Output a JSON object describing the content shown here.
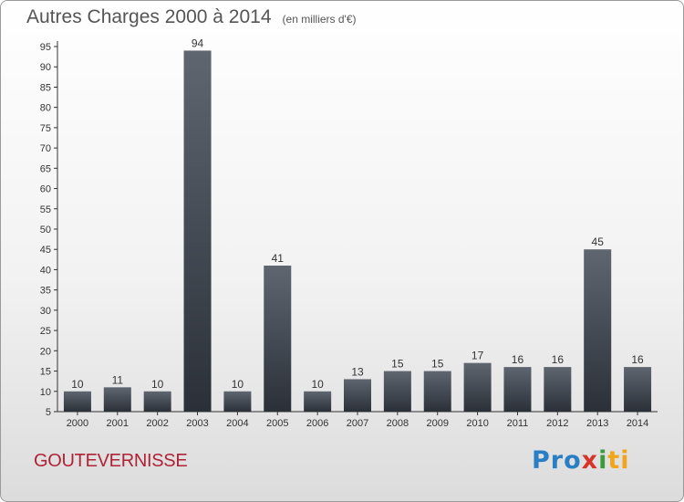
{
  "chart_data": {
    "type": "bar",
    "title": "Autres Charges 2000 à 2014",
    "unit": "(en milliers d'€)",
    "categories": [
      "2000",
      "2001",
      "2002",
      "2003",
      "2004",
      "2005",
      "2006",
      "2007",
      "2008",
      "2009",
      "2010",
      "2011",
      "2012",
      "2013",
      "2014"
    ],
    "values": [
      10,
      11,
      10,
      94,
      10,
      41,
      10,
      13,
      15,
      15,
      17,
      16,
      16,
      45,
      16
    ],
    "ylim": [
      5,
      95
    ],
    "yticks": [
      5,
      10,
      15,
      20,
      25,
      30,
      35,
      40,
      45,
      50,
      55,
      60,
      65,
      70,
      75,
      80,
      85,
      90,
      95
    ],
    "grid": false,
    "bar_color": "#3a4048"
  },
  "footer": {
    "city": "GOUTEVERNISSE",
    "logo": {
      "part1": "Pro",
      "part2": "x",
      "part3": "i",
      "part4": "ti"
    }
  }
}
